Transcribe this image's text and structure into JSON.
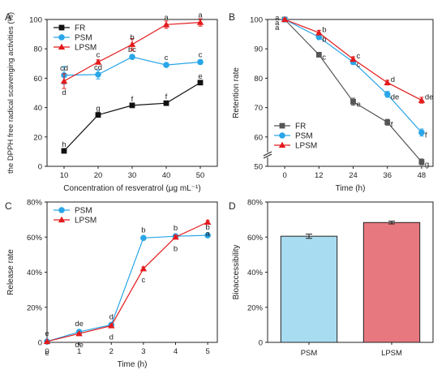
{
  "chart_data": [
    {
      "panel": "A",
      "type": "line",
      "xlabel": "Concentration of resveratrol (μg mL⁻¹)",
      "ylabel": "the DPPH free radical scavenging activities (%)",
      "x": [
        10,
        20,
        30,
        40,
        50
      ],
      "xlim": [
        5,
        55
      ],
      "ylim": [
        0,
        100
      ],
      "xticks": [
        "10",
        "20",
        "30",
        "40",
        "50"
      ],
      "yticks": [
        "0",
        "20",
        "40",
        "60",
        "80",
        "100"
      ],
      "legend_position": "top-left",
      "series": [
        {
          "name": "FR",
          "marker": "square",
          "color": "#111111",
          "values": [
            10.5,
            35,
            41.5,
            43,
            57
          ],
          "errors": [
            0.8,
            1.2,
            1.2,
            1.2,
            1.2
          ],
          "labels": [
            "h",
            "g",
            "f",
            "f",
            "e"
          ]
        },
        {
          "name": "PSM",
          "marker": "circle",
          "color": "#2aa6e8",
          "values": [
            62,
            62.5,
            74.5,
            69,
            71
          ],
          "errors": [
            6,
            3,
            1.5,
            1,
            1.5
          ],
          "labels": [
            "cd",
            "cd",
            "bc",
            "c",
            "c"
          ]
        },
        {
          "name": "LPSM",
          "marker": "triangle",
          "color": "#e31a1c",
          "values": [
            58,
            71,
            83,
            96.5,
            98
          ],
          "errors": [
            5,
            1.5,
            4,
            2.5,
            2.5
          ],
          "labels": [
            "d",
            "c",
            "b",
            "a",
            "a"
          ]
        }
      ]
    },
    {
      "panel": "B",
      "type": "line",
      "xlabel": "Time (h)",
      "ylabel": "Retention rate",
      "x": [
        0,
        12,
        24,
        36,
        48
      ],
      "xlim": [
        -6,
        52
      ],
      "ylim": [
        50,
        100
      ],
      "axis_break": "y below 50",
      "xticks": [
        "0",
        "12",
        "24",
        "36",
        "48"
      ],
      "yticks": [
        "50",
        "60",
        "70",
        "80",
        "90",
        "100"
      ],
      "legend_position": "bottom-left",
      "series": [
        {
          "name": "FR",
          "marker": "square",
          "color": "#555555",
          "values": [
            100,
            88,
            72,
            65,
            51.5
          ],
          "errors": [
            0.3,
            0.8,
            1.2,
            1,
            1
          ],
          "labels": [
            "a",
            "c",
            "e",
            "f",
            "g"
          ]
        },
        {
          "name": "PSM",
          "marker": "circle",
          "color": "#2aa6e8",
          "values": [
            100,
            94,
            85.5,
            74.5,
            61.5
          ],
          "errors": [
            0.3,
            0.8,
            0.8,
            1,
            1.2
          ],
          "labels": [
            "a",
            "b",
            "c",
            "de",
            "f"
          ]
        },
        {
          "name": "LPSM",
          "marker": "triangle",
          "color": "#e31a1c",
          "values": [
            100,
            95.5,
            86.5,
            78.5,
            72.5
          ],
          "errors": [
            0.3,
            0.8,
            0.8,
            0.8,
            1
          ],
          "labels": [
            "a",
            "b",
            "c",
            "d",
            "de"
          ]
        }
      ]
    },
    {
      "panel": "C",
      "type": "line",
      "xlabel": "Time (h)",
      "ylabel": "Release rate",
      "x": [
        0,
        1,
        2,
        3,
        4,
        5
      ],
      "xlim": [
        0,
        5.3
      ],
      "ylim": [
        0,
        80
      ],
      "xticks": [
        "0",
        "1",
        "2",
        "3",
        "4",
        "5"
      ],
      "yticks": [
        "0",
        "20%",
        "40%",
        "60%",
        "80%"
      ],
      "legend_position": "top-left",
      "series": [
        {
          "name": "PSM",
          "marker": "circle",
          "color": "#2aa6e8",
          "values": [
            0.5,
            6,
            10,
            59.5,
            60.5,
            61
          ],
          "errors": [
            0.3,
            0.5,
            0.5,
            1,
            1,
            1
          ],
          "labels": [
            "e",
            "de",
            "d",
            "b",
            "b",
            "b"
          ]
        },
        {
          "name": "LPSM",
          "marker": "triangle",
          "color": "#e31a1c",
          "values": [
            0.5,
            5,
            9.5,
            42,
            60,
            68.5
          ],
          "errors": [
            0.3,
            0.5,
            0.5,
            1,
            1,
            1
          ],
          "labels": [
            "e",
            "de",
            "d",
            "c",
            "b",
            "a"
          ]
        }
      ]
    },
    {
      "panel": "D",
      "type": "bar",
      "ylabel": "Bioaccessibility",
      "categories": [
        "PSM",
        "LPSM"
      ],
      "values": [
        60.5,
        68.3
      ],
      "errors": [
        1.2,
        0.8
      ],
      "colors": [
        "#a8dcf0",
        "#e87880"
      ],
      "ylim": [
        0,
        80
      ],
      "yticks": [
        "0",
        "20%",
        "40%",
        "60%",
        "80%"
      ]
    }
  ]
}
